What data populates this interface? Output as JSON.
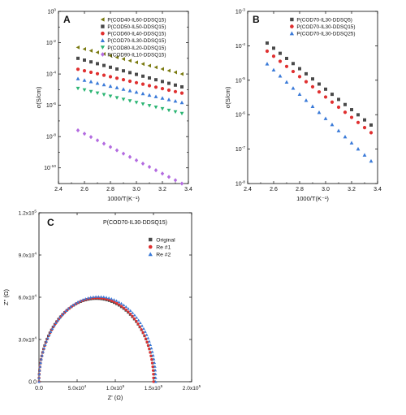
{
  "chart_data": [
    {
      "panel": "A",
      "type": "scatter",
      "xlabel": "1000/T(K⁻¹)",
      "ylabel": "σ(S/cm)",
      "xlim": [
        2.4,
        3.4
      ],
      "ylim_log10": [
        -11,
        0
      ],
      "log_y": true,
      "x_ticks": [
        2.4,
        2.6,
        2.8,
        3.0,
        3.2,
        3.4
      ],
      "y_tick_exponents": [
        -10,
        -8,
        -6,
        -4,
        -2,
        0
      ],
      "legend_position": "top-right",
      "series": [
        {
          "name": "P(COD40-IL60-DDSQ15)",
          "marker": "triangle-left",
          "color": "#7a7a10",
          "x_start": 2.55,
          "x_end": 3.35,
          "y_start": 0.005,
          "y_end": 0.0001
        },
        {
          "name": "P(COD50-IL50-DDSQ15)",
          "marker": "square",
          "color": "#4a4a4a",
          "x_start": 2.55,
          "x_end": 3.35,
          "y_start": 0.001,
          "y_end": 1.5e-05
        },
        {
          "name": "P(COD60-IL40-DDSQ15)",
          "marker": "circle",
          "color": "#e03030",
          "x_start": 2.55,
          "x_end": 3.35,
          "y_start": 0.0002,
          "y_end": 6e-06
        },
        {
          "name": "P(COD70-IL30-DDSQ15)",
          "marker": "triangle-up",
          "color": "#3a7ad8",
          "x_start": 2.55,
          "x_end": 3.35,
          "y_start": 5e-05,
          "y_end": 1.5e-06
        },
        {
          "name": "P(COD80-IL20-DDSQ15)",
          "marker": "triangle-down",
          "color": "#2bb573",
          "x_start": 2.55,
          "x_end": 3.35,
          "y_start": 1.2e-05,
          "y_end": 3e-07
        },
        {
          "name": "P(COD90-IL10-DDSQ15)",
          "marker": "diamond",
          "color": "#b36be0",
          "x_start": 2.55,
          "x_end": 3.35,
          "y_start": 2.5e-08,
          "y_end": 1e-11
        }
      ]
    },
    {
      "panel": "B",
      "type": "scatter",
      "xlabel": "1000/T(K⁻¹)",
      "ylabel": "σ(S/cm)",
      "xlim": [
        2.4,
        3.4
      ],
      "ylim_log10": [
        -8,
        -3
      ],
      "log_y": true,
      "x_ticks": [
        2.4,
        2.6,
        2.8,
        3.0,
        3.2,
        3.4
      ],
      "y_tick_exponents": [
        -8,
        -7,
        -6,
        -5,
        -4,
        -3
      ],
      "legend_position": "top-right",
      "series": [
        {
          "name": "P(COD70-IL30-DDSQ5)",
          "marker": "square",
          "color": "#4a4a4a",
          "x_start": 2.55,
          "x_end": 3.35,
          "y_start": 0.00012,
          "y_end": 5e-07
        },
        {
          "name": "P(COD70-IL30-DDSQ15)",
          "marker": "circle",
          "color": "#e03030",
          "x_start": 2.55,
          "x_end": 3.35,
          "y_start": 7e-05,
          "y_end": 3e-07
        },
        {
          "name": "P(COD70-IL30-DDSQ25)",
          "marker": "triangle-up",
          "color": "#3a7ad8",
          "x_start": 2.55,
          "x_end": 3.35,
          "y_start": 3e-05,
          "y_end": 4.5e-08
        }
      ]
    },
    {
      "panel": "C",
      "type": "scatter",
      "title": "P(COD70-IL30-DDSQ15)",
      "xlabel": "Z' (Ω)",
      "ylabel": "Z\" (Ω)",
      "xlim": [
        0,
        200000
      ],
      "ylim": [
        0,
        120000
      ],
      "x_ticks": [
        0,
        50000,
        100000,
        150000,
        200000
      ],
      "y_ticks": [
        0,
        30000,
        60000,
        90000,
        120000
      ],
      "x_tick_labels": [
        "0.0",
        "5.0x10⁴",
        "1.0x10⁵",
        "1.5x10⁵",
        "2.0x10⁵"
      ],
      "y_tick_labels": [
        "0.0",
        "3.0x10⁴",
        "6.0x10⁴",
        "9.0x10⁴",
        "1.2x10⁵"
      ],
      "legend_position": "top-right",
      "series": [
        {
          "name": "Original",
          "marker": "square",
          "color": "#4a4a4a",
          "x_min": 0,
          "x_max": 151000,
          "peak_x": 75000,
          "peak_y": 59000
        },
        {
          "name": "Re #1",
          "marker": "circle",
          "color": "#e03030",
          "x_min": 0,
          "x_max": 150000,
          "peak_x": 76000,
          "peak_y": 59500
        },
        {
          "name": "Re #2",
          "marker": "triangle-up",
          "color": "#3a7ad8",
          "x_min": 0,
          "x_max": 153000,
          "peak_x": 78000,
          "peak_y": 60500
        }
      ]
    }
  ]
}
